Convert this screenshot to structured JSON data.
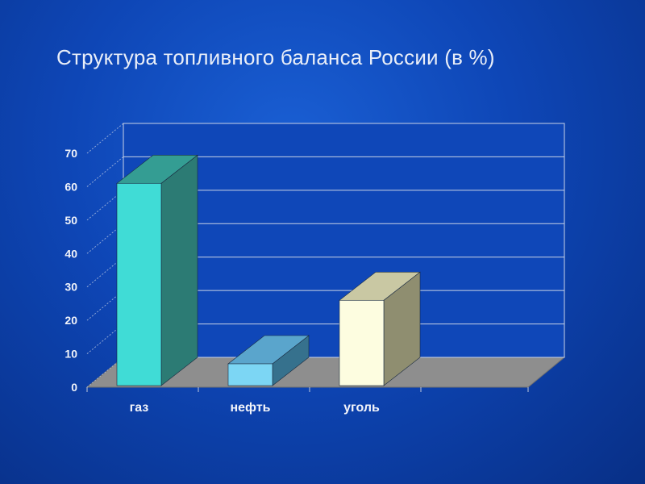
{
  "slide": {
    "title": "Структура топливного баланса России (в %)"
  },
  "chart_data": {
    "type": "bar",
    "title": "Структура топливного баланса России (в %)",
    "categories": [
      "газ",
      "нефть",
      "уголь"
    ],
    "values": [
      61,
      7,
      26
    ],
    "ylim": [
      0,
      70
    ],
    "yticks": [
      0,
      10,
      20,
      30,
      40,
      50,
      60,
      70
    ],
    "xlabel": "",
    "ylabel": "",
    "grid": true,
    "legend": "none",
    "style": "3d",
    "colors": {
      "front": [
        "#40dcd6",
        "#7cd6f4",
        "#fdfde0"
      ],
      "side": [
        "#2c7b74",
        "#36718d",
        "#8f8e70"
      ],
      "top": [
        "#349d93",
        "#5aa5cc",
        "#c9c8a3"
      ],
      "floor": "#8e8e8e",
      "back_wall": "#0f47b8",
      "gridline": "#c8d2e6",
      "axis_text": "#f2f4fa"
    }
  }
}
